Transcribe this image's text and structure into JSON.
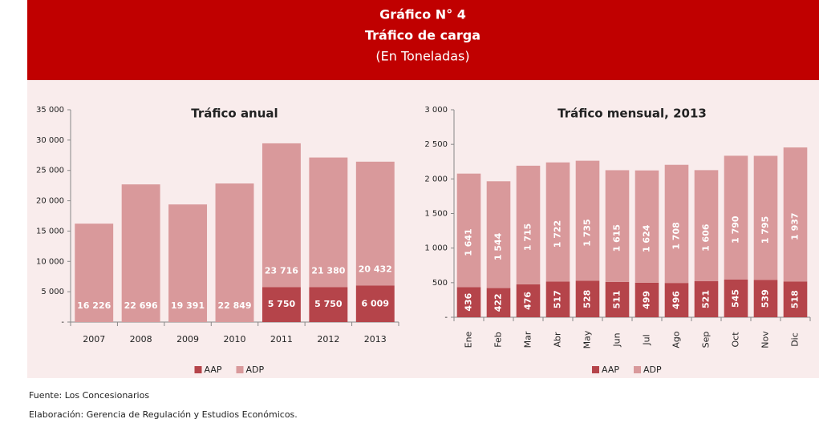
{
  "header": {
    "title": "Gráfico N° 4",
    "subtitle": "Tráfico de carga",
    "unit": "(En Toneladas)"
  },
  "chart_data": [
    {
      "type": "bar",
      "stacked": true,
      "title": "Tráfico anual",
      "categories": [
        "2007",
        "2008",
        "2009",
        "2010",
        "2011",
        "2012",
        "2013"
      ],
      "series": [
        {
          "name": "AAP",
          "color": "#b5444a",
          "values": [
            null,
            null,
            null,
            null,
            5750,
            5750,
            6009
          ],
          "value_labels": [
            null,
            null,
            null,
            null,
            "5 750",
            "5 750",
            "6 009"
          ]
        },
        {
          "name": "ADP",
          "color": "#d9999b",
          "values": [
            16226,
            22696,
            19391,
            22849,
            23716,
            21380,
            20432
          ],
          "value_labels": [
            "16 226",
            "22 696",
            "19 391",
            "22 849",
            "23 716",
            "21 380",
            "20 432"
          ]
        }
      ],
      "ylim": [
        0,
        35000
      ],
      "yticks": [
        {
          "value": 0,
          "label": "-"
        },
        {
          "value": 5000,
          "label": "5 000"
        },
        {
          "value": 10000,
          "label": "10 000"
        },
        {
          "value": 15000,
          "label": "15 000"
        },
        {
          "value": 20000,
          "label": "20 000"
        },
        {
          "value": 25000,
          "label": "25 000"
        },
        {
          "value": 30000,
          "label": "30 000"
        },
        {
          "value": 35000,
          "label": "35 000"
        }
      ],
      "legend": "bottom"
    },
    {
      "type": "bar",
      "stacked": true,
      "title": "Tráfico mensual, 2013",
      "categories": [
        "Ene",
        "Feb",
        "Mar",
        "Abr",
        "May",
        "Jun",
        "Jul",
        "Ago",
        "Sep",
        "Oct",
        "Nov",
        "Dic"
      ],
      "series": [
        {
          "name": "AAP",
          "color": "#b5444a",
          "values": [
            436,
            422,
            476,
            517,
            528,
            511,
            499,
            496,
            521,
            545,
            539,
            518
          ]
        },
        {
          "name": "ADP",
          "color": "#d9999b",
          "values": [
            1641,
            1544,
            1715,
            1722,
            1735,
            1615,
            1624,
            1708,
            1606,
            1790,
            1795,
            1937
          ],
          "value_labels": [
            "1 641",
            "1 544",
            "1 715",
            "1 722",
            "1 735",
            "1 615",
            "1 624",
            "1 708",
            "1 606",
            "1 790",
            "1 795",
            "1 937"
          ]
        }
      ],
      "ylim": [
        0,
        3000
      ],
      "yticks": [
        {
          "value": 0,
          "label": "-"
        },
        500,
        {
          "value": 1000,
          "label": "1 000"
        },
        {
          "value": 1500,
          "label": "1 500"
        },
        {
          "value": 2000,
          "label": "2 000"
        },
        {
          "value": 2500,
          "label": "2 500"
        },
        {
          "value": 3000,
          "label": "3 000"
        }
      ],
      "legend": "bottom"
    }
  ],
  "footer": {
    "source": "Fuente: Los Concesionarios",
    "credit": "Elaboración: Gerencia de Regulación y Estudios Económicos."
  }
}
